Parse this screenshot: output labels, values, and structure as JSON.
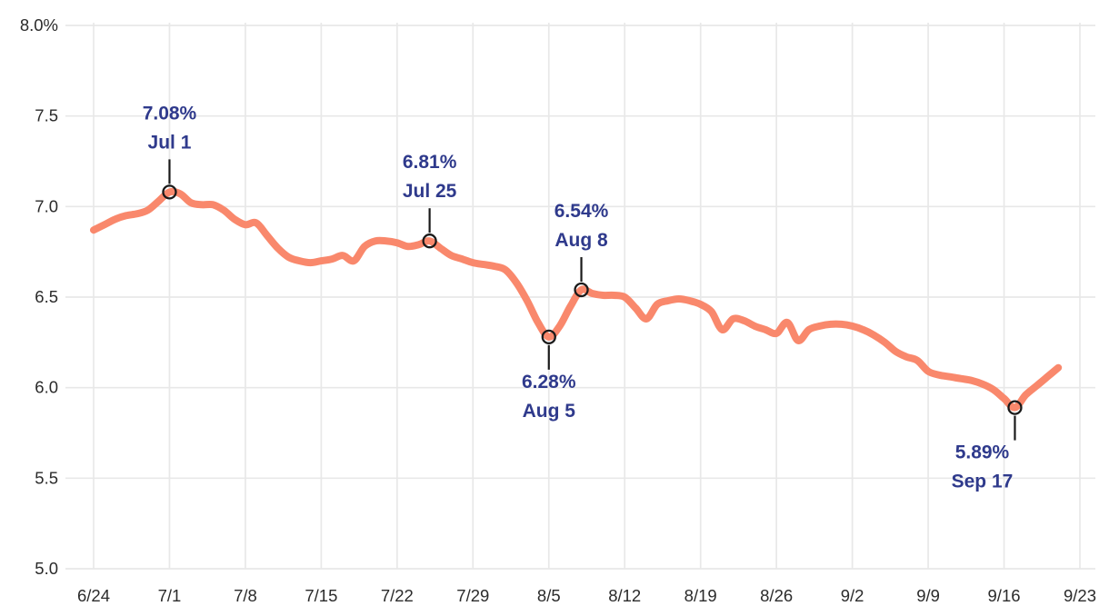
{
  "chart_data": {
    "type": "line",
    "title": "",
    "xlabel": "",
    "ylabel": "",
    "ylim": [
      5.0,
      8.0
    ],
    "grid": true,
    "x_days_span": 91,
    "x": [
      "6/24",
      "6/25",
      "6/26",
      "6/27",
      "6/28",
      "6/29",
      "6/30",
      "7/1",
      "7/2",
      "7/3",
      "7/4",
      "7/5",
      "7/6",
      "7/7",
      "7/8",
      "7/9",
      "7/10",
      "7/11",
      "7/12",
      "7/13",
      "7/14",
      "7/15",
      "7/16",
      "7/17",
      "7/18",
      "7/19",
      "7/20",
      "7/21",
      "7/22",
      "7/23",
      "7/24",
      "7/25",
      "7/26",
      "7/27",
      "7/28",
      "7/29",
      "7/30",
      "7/31",
      "8/1",
      "8/2",
      "8/3",
      "8/4",
      "8/5",
      "8/6",
      "8/7",
      "8/8",
      "8/9",
      "8/10",
      "8/11",
      "8/12",
      "8/13",
      "8/14",
      "8/15",
      "8/16",
      "8/17",
      "8/18",
      "8/19",
      "8/20",
      "8/21",
      "8/22",
      "8/23",
      "8/24",
      "8/25",
      "8/26",
      "8/27",
      "8/28",
      "8/29",
      "8/30",
      "8/31",
      "9/1",
      "9/2",
      "9/3",
      "9/4",
      "9/5",
      "9/6",
      "9/7",
      "9/8",
      "9/9",
      "9/10",
      "9/11",
      "9/12",
      "9/13",
      "9/14",
      "9/15",
      "9/16",
      "9/17",
      "9/18",
      "9/19",
      "9/20",
      "9/21"
    ],
    "values": [
      6.87,
      6.9,
      6.93,
      6.95,
      6.96,
      6.98,
      7.03,
      7.08,
      7.07,
      7.02,
      7.01,
      7.01,
      6.98,
      6.93,
      6.9,
      6.91,
      6.84,
      6.77,
      6.72,
      6.7,
      6.69,
      6.7,
      6.71,
      6.73,
      6.7,
      6.78,
      6.81,
      6.81,
      6.8,
      6.78,
      6.79,
      6.81,
      6.77,
      6.73,
      6.71,
      6.69,
      6.68,
      6.67,
      6.65,
      6.58,
      6.48,
      6.36,
      6.28,
      6.34,
      6.45,
      6.54,
      6.52,
      6.51,
      6.51,
      6.5,
      6.44,
      6.38,
      6.46,
      6.48,
      6.49,
      6.48,
      6.46,
      6.42,
      6.32,
      6.38,
      6.37,
      6.34,
      6.32,
      6.3,
      6.36,
      6.26,
      6.32,
      6.34,
      6.35,
      6.35,
      6.34,
      6.32,
      6.29,
      6.25,
      6.2,
      6.17,
      6.15,
      6.09,
      6.07,
      6.06,
      6.05,
      6.04,
      6.02,
      5.99,
      5.94,
      5.89,
      5.96,
      6.01,
      6.06,
      6.11
    ],
    "x_tick_labels": [
      "6/24",
      "7/1",
      "7/8",
      "7/15",
      "7/22",
      "7/29",
      "8/5",
      "8/12",
      "8/19",
      "8/26",
      "9/2",
      "9/9",
      "9/16",
      "9/23"
    ],
    "y_ticks": [
      5.0,
      5.5,
      6.0,
      6.5,
      7.0,
      7.5,
      8.0
    ],
    "y_tick_labels": [
      "5.0",
      "5.5",
      "6.0",
      "6.5",
      "7.0",
      "7.5",
      "8.0%"
    ],
    "legend": null,
    "annotations": [
      {
        "value_label": "7.08%",
        "date_label": "Jul 1",
        "date": "7/1",
        "value": 7.08,
        "position": "above",
        "label_dx": 0
      },
      {
        "value_label": "6.81%",
        "date_label": "Jul 25",
        "date": "7/25",
        "value": 6.81,
        "position": "above",
        "label_dx": 0
      },
      {
        "value_label": "6.54%",
        "date_label": "Aug 8",
        "date": "8/8",
        "value": 6.54,
        "position": "above",
        "label_dx": 0
      },
      {
        "value_label": "6.28%",
        "date_label": "Aug 5",
        "date": "8/5",
        "value": 6.28,
        "position": "below",
        "label_dx": 0
      },
      {
        "value_label": "5.89%",
        "date_label": "Sep 17",
        "date": "9/17",
        "value": 5.89,
        "position": "below",
        "label_dx": -36
      }
    ],
    "colors": {
      "line": "#F9886C",
      "annotation_text": "#2F3A8C",
      "marker_stroke": "#1A1A1A",
      "connector": "#1A1A1A",
      "grid": "#E8E8E8",
      "axis_text": "#2B2B2B",
      "background": "#FFFFFF"
    }
  }
}
